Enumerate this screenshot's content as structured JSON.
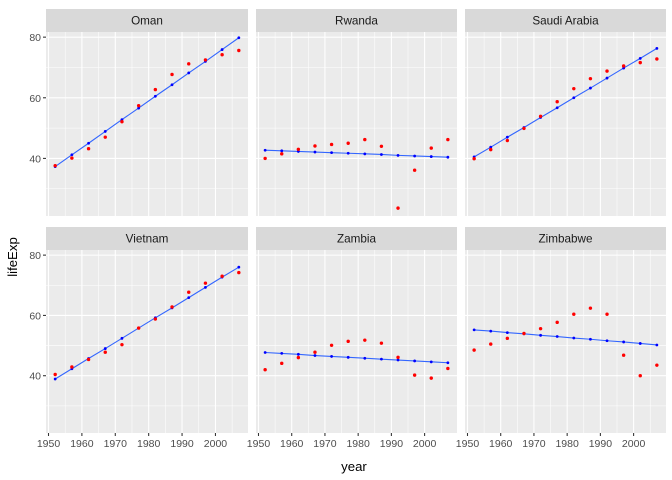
{
  "chart_data": {
    "type": "scatter",
    "xlabel": "year",
    "ylabel": "lifeExp",
    "xlim": [
      1949.25,
      2009.75
    ],
    "ylim": [
      21.0,
      81.7
    ],
    "xticks": [
      1950,
      1960,
      1970,
      1980,
      1990,
      2000
    ],
    "xtick_labels": [
      "1950",
      "1960",
      "1970",
      "1980",
      "1990",
      "2000"
    ],
    "yticks": [
      40,
      60,
      80
    ],
    "ytick_labels": [
      "40",
      "60",
      "80"
    ],
    "grid": true,
    "x": [
      1952,
      1957,
      1962,
      1967,
      1972,
      1977,
      1982,
      1987,
      1992,
      1997,
      2002,
      2007
    ],
    "colors": {
      "observed": "#FF0000",
      "fitted": "#0000FF",
      "fit_line": "#3366FF"
    },
    "panels": [
      {
        "name": "Oman",
        "observed": [
          37.6,
          40.1,
          43.2,
          47.0,
          52.1,
          57.4,
          62.7,
          67.7,
          71.2,
          72.5,
          74.2,
          75.6
        ],
        "fitted": [
          37.3,
          41.2,
          45.0,
          48.9,
          52.8,
          56.6,
          60.5,
          64.3,
          68.2,
          72.0,
          75.9,
          79.8
        ]
      },
      {
        "name": "Rwanda",
        "observed": [
          40.0,
          41.5,
          43.0,
          44.1,
          44.6,
          45.0,
          46.2,
          44.0,
          23.6,
          36.1,
          43.4,
          46.2
        ],
        "fitted": [
          42.7,
          42.5,
          42.3,
          42.1,
          41.9,
          41.7,
          41.5,
          41.3,
          41.0,
          40.8,
          40.6,
          40.4
        ]
      },
      {
        "name": "Saudi Arabia",
        "observed": [
          39.9,
          42.9,
          45.9,
          49.9,
          53.9,
          58.7,
          63.0,
          66.3,
          68.8,
          70.5,
          71.6,
          72.8
        ],
        "fitted": [
          40.5,
          43.7,
          47.0,
          50.2,
          53.5,
          56.7,
          60.0,
          63.2,
          66.5,
          69.8,
          73.0,
          76.3
        ]
      },
      {
        "name": "Vietnam",
        "observed": [
          40.4,
          42.9,
          45.4,
          47.8,
          50.3,
          55.8,
          58.8,
          62.8,
          67.7,
          70.7,
          73.0,
          74.2
        ],
        "fitted": [
          38.9,
          42.3,
          45.7,
          49.0,
          52.4,
          55.8,
          59.2,
          62.5,
          65.9,
          69.3,
          72.7,
          76.0
        ]
      },
      {
        "name": "Zambia",
        "observed": [
          42.0,
          44.1,
          46.0,
          47.8,
          50.1,
          51.4,
          51.8,
          50.8,
          46.1,
          40.2,
          39.2,
          42.4
        ],
        "fitted": [
          47.7,
          47.4,
          47.1,
          46.7,
          46.4,
          46.1,
          45.8,
          45.5,
          45.2,
          44.9,
          44.6,
          44.3
        ]
      },
      {
        "name": "Zimbabwe",
        "observed": [
          48.5,
          50.5,
          52.4,
          54.0,
          55.6,
          57.7,
          60.4,
          62.4,
          60.4,
          46.8,
          40.0,
          43.5
        ],
        "fitted": [
          55.2,
          54.8,
          54.3,
          53.9,
          53.4,
          53.0,
          52.5,
          52.1,
          51.6,
          51.2,
          50.7,
          50.2
        ]
      }
    ]
  }
}
